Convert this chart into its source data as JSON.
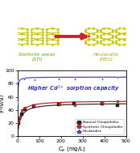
{
  "title": "Higher Cd²⁺ sorption capacity",
  "xlabel": "C_e (mg/L)",
  "ylabel": "Q_e\n(mg/g)",
  "xlim": [
    0,
    500
  ],
  "ylim": [
    0,
    100
  ],
  "xticks": [
    0,
    100,
    200,
    300,
    400,
    500
  ],
  "yticks": [
    0,
    20,
    40,
    60,
    80,
    100
  ],
  "bg_color": "#ffffff",
  "series": [
    {
      "name": "Natural Clinoptilolite",
      "color": "#333333",
      "marker": "s",
      "marker_color": "#222222",
      "data_x": [
        3,
        8,
        20,
        35,
        75,
        190,
        260,
        390,
        460
      ],
      "data_y": [
        20,
        27,
        33,
        41,
        46,
        48,
        49,
        50,
        47
      ],
      "langmuir_qmax": 50.5,
      "langmuir_b": 0.08
    },
    {
      "name": "Synthetic Clinoptilolite",
      "color": "#cc2222",
      "marker": "o",
      "marker_color": "#cc2222",
      "data_x": [
        2,
        8,
        20,
        35,
        75,
        195,
        265,
        390,
        460
      ],
      "data_y": [
        21,
        28,
        40,
        43,
        47,
        49,
        47,
        51,
        53
      ],
      "langmuir_qmax": 54.0,
      "langmuir_b": 0.1
    },
    {
      "name": "Heulandite",
      "color": "#4444cc",
      "marker": "^",
      "marker_color": "#4444cc",
      "data_x": [
        2,
        5,
        10,
        30,
        80,
        190,
        265,
        390,
        460
      ],
      "data_y": [
        51,
        85,
        87,
        88,
        87,
        88,
        88,
        88,
        90
      ],
      "langmuir_qmax": 90.0,
      "langmuir_b": 1.5
    }
  ],
  "top_labels": {
    "stellerite": "Stellerite seeds\n(STI)",
    "heulandite": "Heulandite\n(HEU)",
    "stellerite_color": "#6aaa00",
    "heulandite_color": "#aaaa00",
    "arrow_color": "#cc2222"
  }
}
